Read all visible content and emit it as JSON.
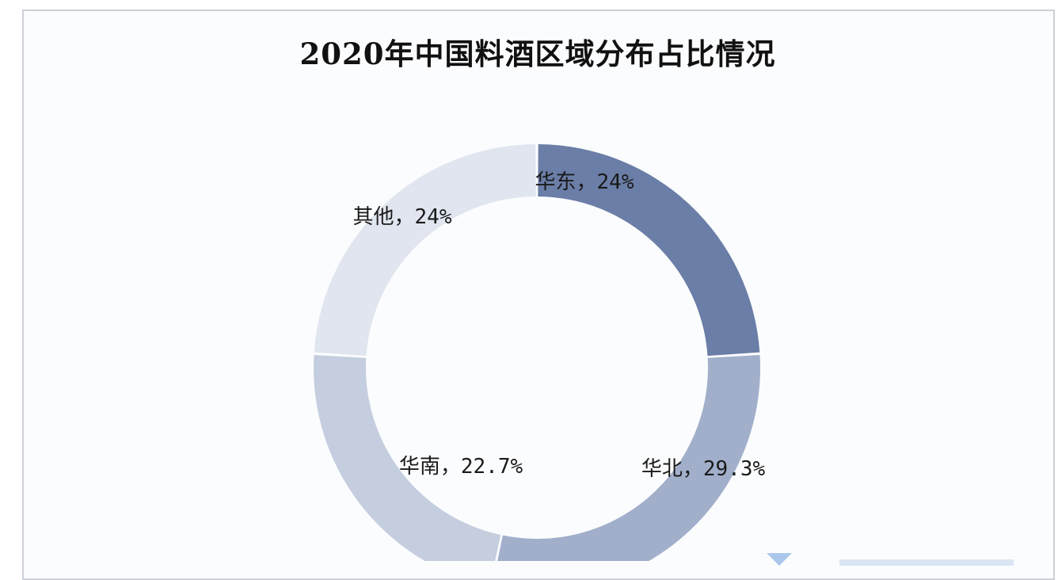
{
  "chart_data": {
    "type": "pie",
    "title": "2020年中国料酒区域分布占比情况",
    "donut": true,
    "slices": [
      {
        "name": "华东",
        "value": 24,
        "label": "华东，24%",
        "color": "#6a7ea7"
      },
      {
        "name": "华北",
        "value": 29.3,
        "label": "华北，29.3%",
        "color": "#a1afcb"
      },
      {
        "name": "华南",
        "value": 22.7,
        "label": "华南，22.7%",
        "color": "#c4cede"
      },
      {
        "name": "其他",
        "value": 24,
        "label": "其他，24%",
        "color": "#e0e5ef"
      }
    ],
    "start_angle": "12 o'clock",
    "direction": "clockwise",
    "legend": "none"
  }
}
